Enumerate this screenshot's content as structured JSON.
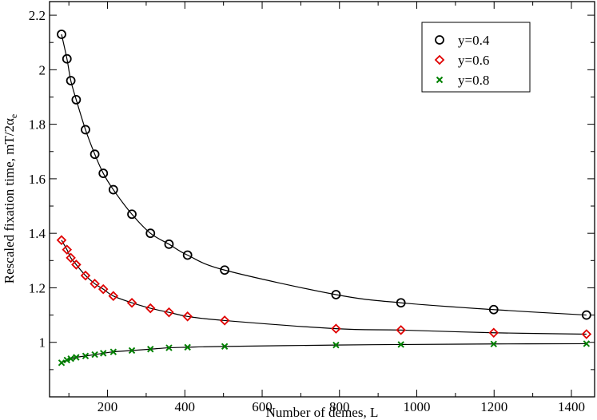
{
  "chart_data": {
    "type": "scatter",
    "xlabel": "Number of demes, L",
    "ylabel_main": "Rescaled fixation time, mT/2α",
    "ylabel_sub": "e",
    "xlim": [
      50,
      1460
    ],
    "ylim": [
      0.8,
      2.25
    ],
    "xticks": [
      200,
      400,
      600,
      800,
      1000,
      1200,
      1400
    ],
    "yticks": [
      1,
      1.2,
      1.4,
      1.6,
      1.8,
      2,
      2.2
    ],
    "grid": false,
    "legend_position": "top-right",
    "series": [
      {
        "name": "y=0.4",
        "marker": "circle",
        "color": "#000000",
        "x": [
          81,
          95,
          105,
          119,
          143,
          167,
          189,
          215,
          263,
          311,
          359,
          407,
          503,
          791,
          959,
          1199,
          1439
        ],
        "y": [
          2.13,
          2.04,
          1.96,
          1.89,
          1.78,
          1.69,
          1.62,
          1.56,
          1.47,
          1.4,
          1.36,
          1.32,
          1.265,
          1.175,
          1.145,
          1.12,
          1.1
        ]
      },
      {
        "name": "y=0.6",
        "marker": "diamond",
        "color": "#e00000",
        "x": [
          81,
          95,
          105,
          119,
          143,
          167,
          189,
          215,
          263,
          311,
          359,
          407,
          503,
          791,
          959,
          1199,
          1439
        ],
        "y": [
          1.375,
          1.34,
          1.31,
          1.285,
          1.245,
          1.215,
          1.195,
          1.17,
          1.145,
          1.125,
          1.11,
          1.095,
          1.08,
          1.05,
          1.045,
          1.035,
          1.03
        ]
      },
      {
        "name": "y=0.8",
        "marker": "x",
        "color": "#008000",
        "x": [
          81,
          95,
          105,
          119,
          143,
          167,
          189,
          215,
          263,
          311,
          359,
          407,
          503,
          791,
          959,
          1199,
          1439
        ],
        "y": [
          0.925,
          0.935,
          0.94,
          0.945,
          0.95,
          0.955,
          0.96,
          0.965,
          0.97,
          0.975,
          0.98,
          0.982,
          0.985,
          0.99,
          0.992,
          0.994,
          0.995
        ]
      }
    ]
  }
}
